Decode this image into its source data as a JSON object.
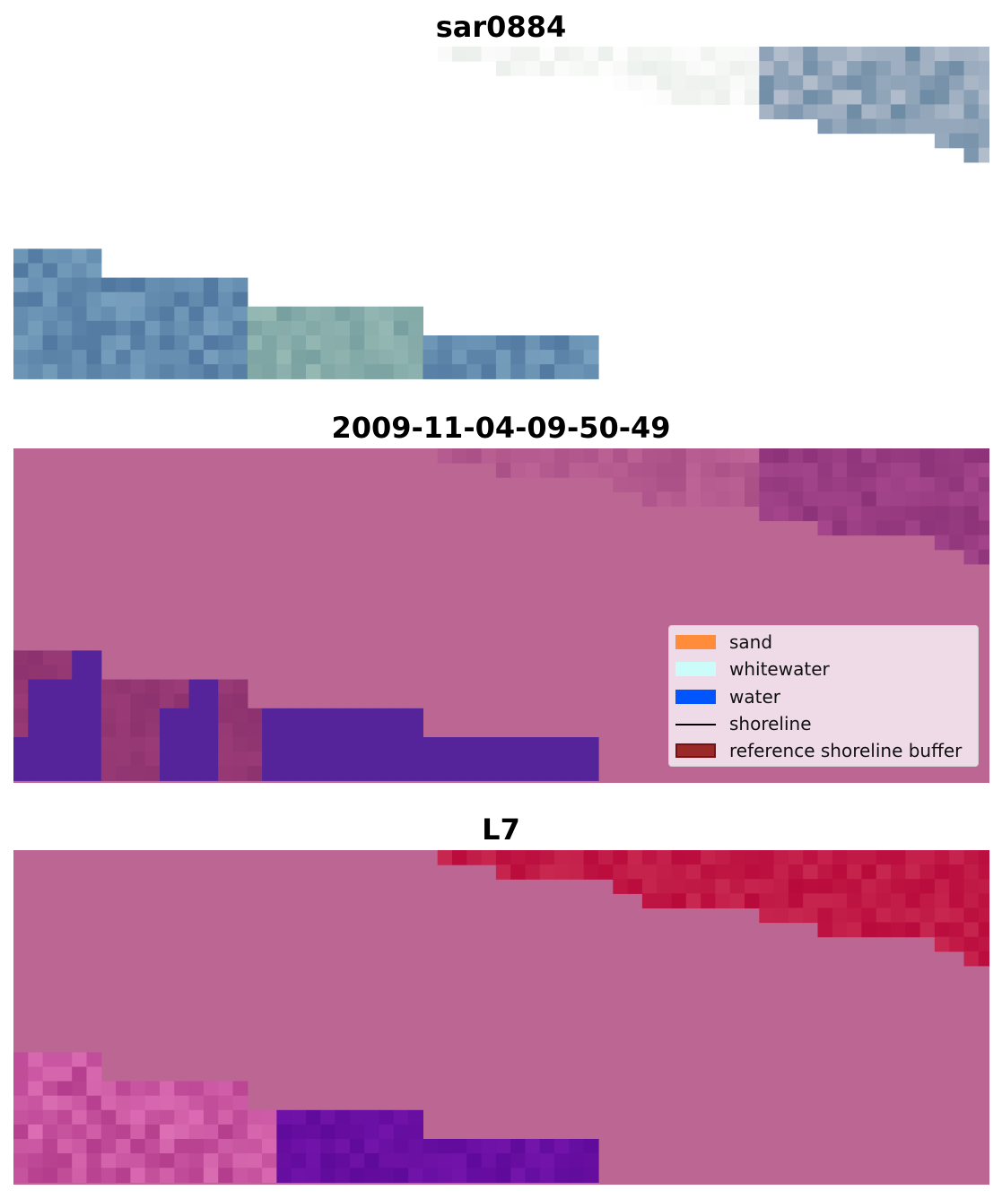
{
  "panels": [
    {
      "title": "sar0884"
    },
    {
      "title": "2009-11-04-09-50-49"
    },
    {
      "title": "L7"
    }
  ],
  "legend": {
    "items": [
      {
        "label": "sand",
        "color": "#ff8c3a",
        "kind": "patch"
      },
      {
        "label": "whitewater",
        "color": "#ccfcfa",
        "kind": "patch"
      },
      {
        "label": "water",
        "color": "#0055ff",
        "kind": "patch"
      },
      {
        "label": "shoreline",
        "color": "#000000",
        "kind": "line"
      },
      {
        "label": "reference shoreline buffer",
        "color": "#9a2a2a",
        "kind": "patch"
      }
    ]
  },
  "colors": {
    "background_mask": "#bc6694",
    "classified_water": "#55249a",
    "index_high": "#c0073a",
    "index_low": "#5a0599"
  }
}
